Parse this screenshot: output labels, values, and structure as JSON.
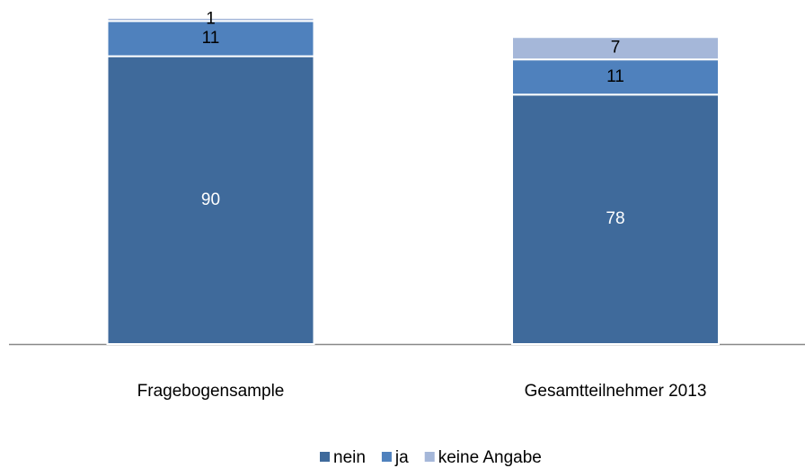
{
  "chart_data": {
    "type": "bar",
    "stacked": true,
    "categories": [
      "Fragebogensample",
      "Gesamtteilnehmer 2013"
    ],
    "series": [
      {
        "name": "nein",
        "color": "#3f6a9b",
        "label_color": "#ffffff",
        "values": [
          90,
          78
        ]
      },
      {
        "name": "ja",
        "color": "#4f81bd",
        "label_color": "#000000",
        "values": [
          11,
          11
        ]
      },
      {
        "name": "keine Angabe",
        "color": "#a5b7d9",
        "label_color": "#000000",
        "values": [
          1,
          7
        ]
      }
    ],
    "legend": "bottom"
  }
}
